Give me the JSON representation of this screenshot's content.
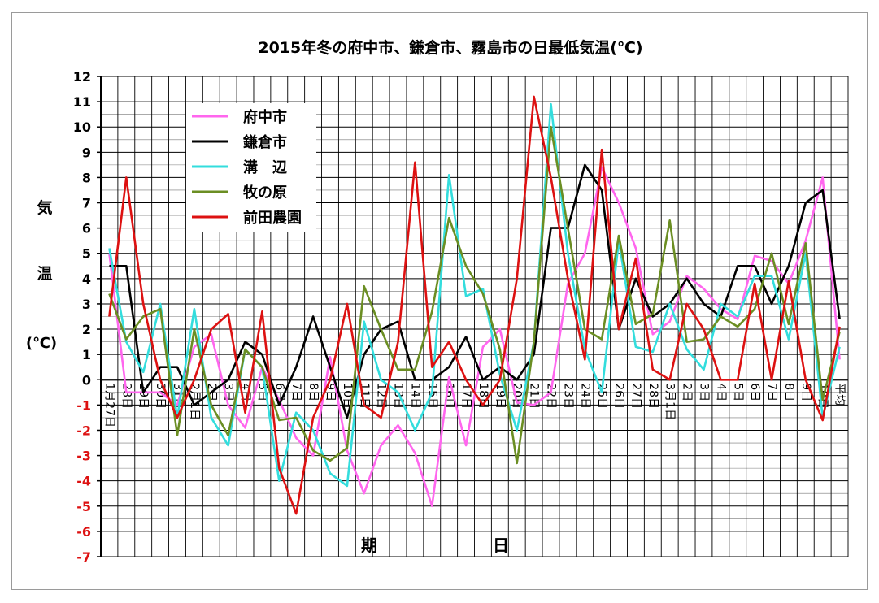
{
  "chart_data": {
    "type": "line",
    "title": "2015年冬の府中市、鎌倉市、霧島市の日最低気温(℃)",
    "xlabel": [
      "期",
      "日"
    ],
    "ylabel": [
      "気",
      "温",
      "(℃)"
    ],
    "ylim": [
      -7,
      12
    ],
    "yticks": [
      12,
      11,
      10,
      9,
      8,
      7,
      6,
      5,
      4,
      3,
      2,
      1,
      0,
      -1,
      -2,
      -3,
      -4,
      -5,
      -6,
      -7
    ],
    "grid": true,
    "legend_position": "top-left",
    "categories": [
      "1月27日",
      "28日",
      "29日",
      "30日",
      "31日",
      "2月1日",
      "2日",
      "3日",
      "4日",
      "5日",
      "6日",
      "7日",
      "8日",
      "9日",
      "10日",
      "11日",
      "12日",
      "13日",
      "14日",
      "15日",
      "16日",
      "17日",
      "18日",
      "19日",
      "20日",
      "21日",
      "22日",
      "23日",
      "24日",
      "25日",
      "26日",
      "27日",
      "28日",
      "3月1日",
      "2日",
      "3日",
      "4日",
      "5日",
      "6日",
      "7日",
      "8日",
      "9日",
      "10日",
      "平均"
    ],
    "series": [
      {
        "name": "府中市",
        "color": "#ff66ee",
        "values": [
          5.0,
          -0.5,
          -0.5,
          -0.5,
          -1.0,
          1.3,
          1.8,
          -1.0,
          -1.9,
          0.5,
          -0.8,
          -2.3,
          -3.0,
          0.9,
          -2.8,
          -4.5,
          -2.6,
          -1.8,
          -2.9,
          -5.0,
          0.1,
          -2.6,
          1.3,
          2.0,
          -0.9,
          -1.0,
          -0.5,
          3.8,
          5.0,
          8.4,
          7.0,
          5.2,
          1.8,
          2.3,
          4.1,
          3.6,
          2.8,
          2.4,
          4.9,
          4.7,
          3.8,
          5.5,
          8.0,
          0.8
        ]
      },
      {
        "name": "鎌倉市",
        "color": "#000000",
        "values": [
          4.5,
          4.5,
          -0.5,
          0.5,
          0.5,
          -1.0,
          -0.5,
          0.0,
          1.5,
          1.0,
          -1.0,
          0.5,
          2.5,
          0.5,
          -1.5,
          1.0,
          2.0,
          2.3,
          0.0,
          0.0,
          0.5,
          1.7,
          0.0,
          0.5,
          0.0,
          1.0,
          6.0,
          6.0,
          8.5,
          7.5,
          2.0,
          4.0,
          2.5,
          3.0,
          4.0,
          3.0,
          2.5,
          4.5,
          4.5,
          3.0,
          4.5,
          7.0,
          7.5,
          2.4
        ]
      },
      {
        "name": "溝　辺",
        "color": "#33dddd",
        "values": [
          5.2,
          1.5,
          0.3,
          3.0,
          -1.5,
          2.8,
          -1.5,
          -2.6,
          1.2,
          0.5,
          -4.0,
          -1.3,
          -2.0,
          -3.7,
          -4.2,
          2.3,
          0.0,
          -0.5,
          -2.0,
          -0.5,
          8.1,
          3.3,
          3.6,
          0.2,
          -2.0,
          1.5,
          10.9,
          5.0,
          1.2,
          -0.5,
          5.5,
          1.3,
          1.1,
          3.0,
          1.2,
          0.4,
          3.0,
          2.5,
          4.1,
          4.1,
          1.6,
          5.0,
          -1.5,
          1.3
        ]
      },
      {
        "name": "牧の原",
        "color": "#6b8e23",
        "values": [
          3.4,
          1.6,
          2.5,
          2.8,
          -2.2,
          2.0,
          -1.0,
          -2.2,
          1.2,
          0.5,
          -1.6,
          -1.5,
          -2.8,
          -3.2,
          -2.7,
          3.7,
          2.0,
          0.4,
          0.4,
          2.7,
          6.4,
          4.5,
          3.4,
          1.2,
          -3.3,
          1.5,
          10.0,
          6.0,
          2.0,
          1.6,
          5.7,
          2.2,
          2.6,
          6.3,
          1.5,
          1.6,
          2.5,
          2.1,
          2.8,
          5.0,
          2.2,
          5.4,
          -0.8,
          1.9
        ]
      },
      {
        "name": "前田農園",
        "color": "#dd1111",
        "values": [
          2.5,
          8.0,
          3.0,
          0.0,
          -1.5,
          0.0,
          2.0,
          2.6,
          -1.3,
          2.7,
          -3.5,
          -5.3,
          -1.5,
          0.0,
          3.0,
          -1.0,
          -1.5,
          1.5,
          8.6,
          0.5,
          1.5,
          0.0,
          -1.0,
          0.0,
          4.0,
          11.2,
          8.0,
          4.0,
          0.8,
          9.1,
          2.0,
          4.8,
          0.4,
          0.0,
          3.0,
          2.0,
          0.0,
          0.0,
          3.8,
          0.0,
          3.9,
          0.0,
          -1.6,
          2.1
        ]
      }
    ]
  }
}
